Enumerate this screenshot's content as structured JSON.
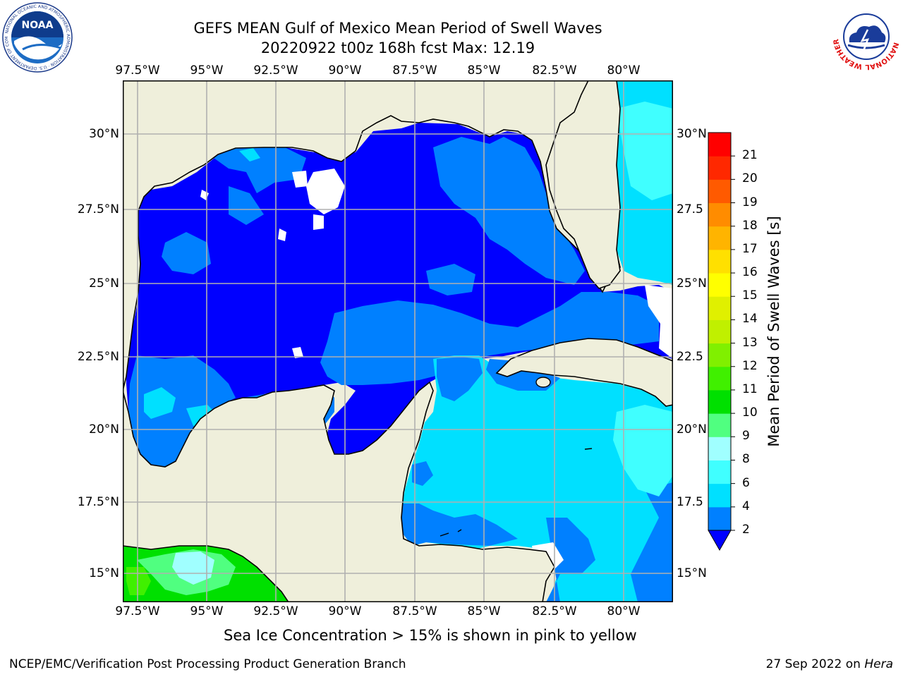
{
  "title": {
    "line1": "GEFS MEAN Gulf of Mexico Mean Period of Swell Waves",
    "line2": "20220922 t00z 168h fcst   Max: 12.19"
  },
  "logos": {
    "left": {
      "name": "noaa-logo",
      "text": "NOAA",
      "ring_text": "NATIONAL OCEANIC AND ATMOSPHERIC ADMINISTRATION · U.S. DEPARTMENT OF COMMERCE"
    },
    "right": {
      "name": "nws-logo",
      "ring_text": "NATIONAL WEATHER SERVICE"
    }
  },
  "map": {
    "lon_labels": [
      "97.5°W",
      "95°W",
      "92.5°W",
      "90°W",
      "87.5°W",
      "85°W",
      "82.5°W",
      "80°W"
    ],
    "lat_labels_left": [
      "30°N",
      "27.5°N",
      "25°N",
      "22.5°N",
      "20°N",
      "17.5°N",
      "15°N"
    ],
    "lat_labels_right": [
      "30°N",
      "27.5",
      "25°N",
      "22.5",
      "20°N",
      "17.5",
      "15°N"
    ],
    "land_color": "#efefdb",
    "grid_color": "#b0b0b0",
    "coast_color": "#000000"
  },
  "colorbar": {
    "label": "Mean Period of Swell Waves [s]",
    "ticks": [
      "2",
      "4",
      "6",
      "8",
      "9",
      "10",
      "11",
      "12",
      "13",
      "14",
      "15",
      "16",
      "17",
      "18",
      "19",
      "20",
      "21"
    ],
    "bounds": [
      2,
      4,
      6,
      8,
      9,
      10,
      11,
      12,
      13,
      14,
      15,
      16,
      17,
      18,
      19,
      20,
      21
    ],
    "colors": [
      "#0080ff",
      "#00e0ff",
      "#40ffff",
      "#a0ffff",
      "#50ff80",
      "#00e000",
      "#40f000",
      "#80f000",
      "#c0f000",
      "#e0f000",
      "#ffff00",
      "#ffe000",
      "#ffb400",
      "#ff8c00",
      "#ff5a00",
      "#ff2800",
      "#ff0000"
    ],
    "under_color": "#0000ff"
  },
  "note": "Sea Ice Concentration > 15% is shown in pink to yellow",
  "footer": {
    "left": "NCEP/EMC/Verification Post Processing Product Generation Branch",
    "right_date": "27 Sep 2022 on ",
    "right_host": "Hera"
  }
}
